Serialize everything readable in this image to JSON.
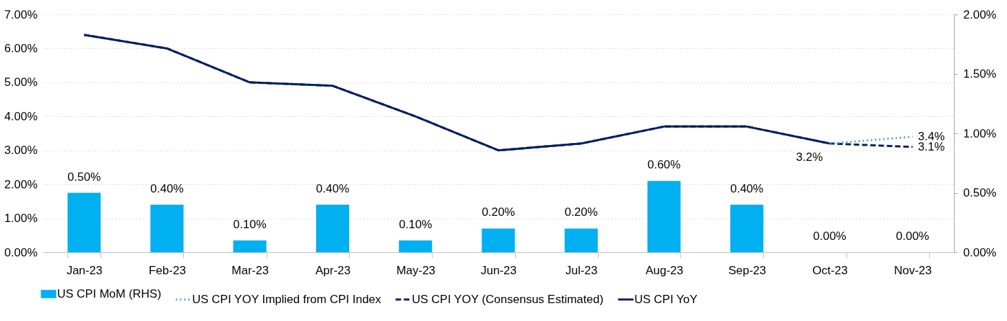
{
  "chart_data": {
    "type": "bar",
    "categories": [
      "Jan-23",
      "Feb-23",
      "Mar-23",
      "Apr-23",
      "May-23",
      "Jun-23",
      "Jul-23",
      "Aug-23",
      "Sep-23",
      "Oct-23",
      "Nov-23"
    ],
    "series": [
      {
        "name": "US CPI MoM (RHS)",
        "axis": "y2",
        "color": "#00b0f0",
        "values": [
          0.5,
          0.4,
          0.1,
          0.4,
          0.1,
          0.2,
          0.2,
          0.6,
          0.4,
          0.0,
          0.0
        ],
        "value_labels": [
          "0.50%",
          "0.40%",
          "0.10%",
          "0.40%",
          "0.10%",
          "0.20%",
          "0.20%",
          "0.60%",
          "0.40%",
          "0.00%",
          "0.00%"
        ]
      },
      {
        "name": "US CPI YOY Implied from CPI Index",
        "type": "line",
        "line_style": "dotted",
        "color": "#5b9bd5",
        "values": [
          null,
          null,
          null,
          null,
          null,
          null,
          null,
          null,
          null,
          3.2,
          3.4
        ]
      },
      {
        "name": "US CPI YOY (Consensus Estimated)",
        "type": "line",
        "line_style": "dashed",
        "color": "#002060",
        "values": [
          6.4,
          6.0,
          5.0,
          4.9,
          4.0,
          3.0,
          3.2,
          3.7,
          3.7,
          3.2,
          3.1
        ]
      },
      {
        "name": "US CPI YoY",
        "type": "line",
        "line_style": "solid",
        "color": "#002060",
        "values": [
          6.4,
          6.0,
          5.0,
          4.9,
          4.0,
          3.0,
          3.2,
          3.7,
          3.7,
          3.2,
          null
        ]
      }
    ],
    "ylim": [
      0,
      7
    ],
    "yticks": [
      {
        "value": 0,
        "label": "0.00%"
      },
      {
        "value": 1,
        "label": "1.00%"
      },
      {
        "value": 2,
        "label": "2.00%"
      },
      {
        "value": 3,
        "label": "3.00%"
      },
      {
        "value": 4,
        "label": "4.00%"
      },
      {
        "value": 5,
        "label": "5.00%"
      },
      {
        "value": 6,
        "label": "6.00%"
      },
      {
        "value": 7,
        "label": "7.00%"
      }
    ],
    "y2lim": [
      0,
      2
    ],
    "y2ticks": [
      {
        "value": 0,
        "label": "0.00%"
      },
      {
        "value": 0.5,
        "label": "0.50%"
      },
      {
        "value": 1,
        "label": "1.00%"
      },
      {
        "value": 1.5,
        "label": "1.50%"
      },
      {
        "value": 2,
        "label": "2.00%"
      }
    ],
    "annotations": [
      {
        "text": "3.2%",
        "x": "Oct-23",
        "y": 3.2
      },
      {
        "text": "3.4%",
        "x": "Nov-23",
        "y": 3.4
      },
      {
        "text": "3.1%",
        "x": "Nov-23",
        "y": 3.1
      }
    ],
    "grid": "y",
    "legend": "bottom"
  }
}
